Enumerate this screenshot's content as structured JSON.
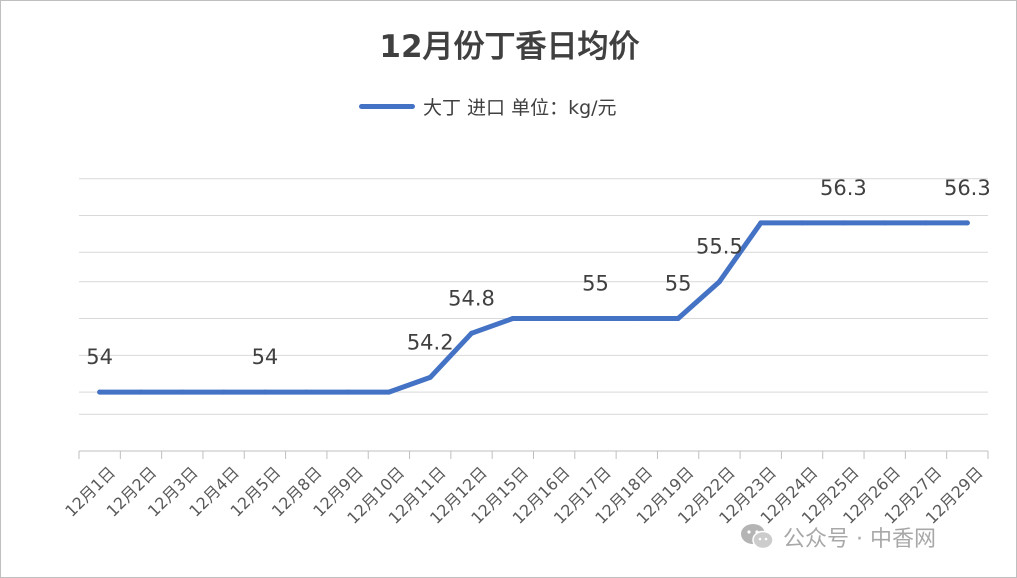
{
  "chart_data": {
    "type": "line",
    "title": "12月份丁香日均价",
    "categories": [
      "12月1日",
      "12月2日",
      "12月3日",
      "12月4日",
      "12月5日",
      "12月8日",
      "12月9日",
      "12月10日",
      "12月11日",
      "12月12日",
      "12月15日",
      "12月16日",
      "12月17日",
      "12月18日",
      "12月19日",
      "12月22日",
      "12月23日",
      "12月24日",
      "12月25日",
      "12月26日",
      "12月27日",
      "12月29日"
    ],
    "series": [
      {
        "name": "大丁 进口 单位：kg/元",
        "values": [
          54,
          54,
          54,
          54,
          54,
          54,
          54,
          54,
          54.2,
          54.8,
          55,
          55,
          55,
          55,
          55,
          55.5,
          56.3,
          56.3,
          56.3,
          56.3,
          56.3,
          56.3
        ],
        "data_labels": [
          {
            "index": 0,
            "text": "54"
          },
          {
            "index": 4,
            "text": "54"
          },
          {
            "index": 8,
            "text": "54.2"
          },
          {
            "index": 9,
            "text": "54.8"
          },
          {
            "index": 12,
            "text": "55"
          },
          {
            "index": 14,
            "text": "55"
          },
          {
            "index": 15,
            "text": "55.5"
          },
          {
            "index": 18,
            "text": "56.3"
          },
          {
            "index": 21,
            "text": "56.3"
          }
        ]
      }
    ],
    "ylim": [
      53.2,
      57.1
    ],
    "gridlines": [
      53.2,
      53.7,
      54.0,
      54.5,
      55.0,
      55.5,
      55.9,
      56.4,
      56.9
    ],
    "grid": true,
    "legend_position": "top",
    "line_color": "#4472C4"
  },
  "watermark": {
    "text": "公众号 · 中香网"
  }
}
